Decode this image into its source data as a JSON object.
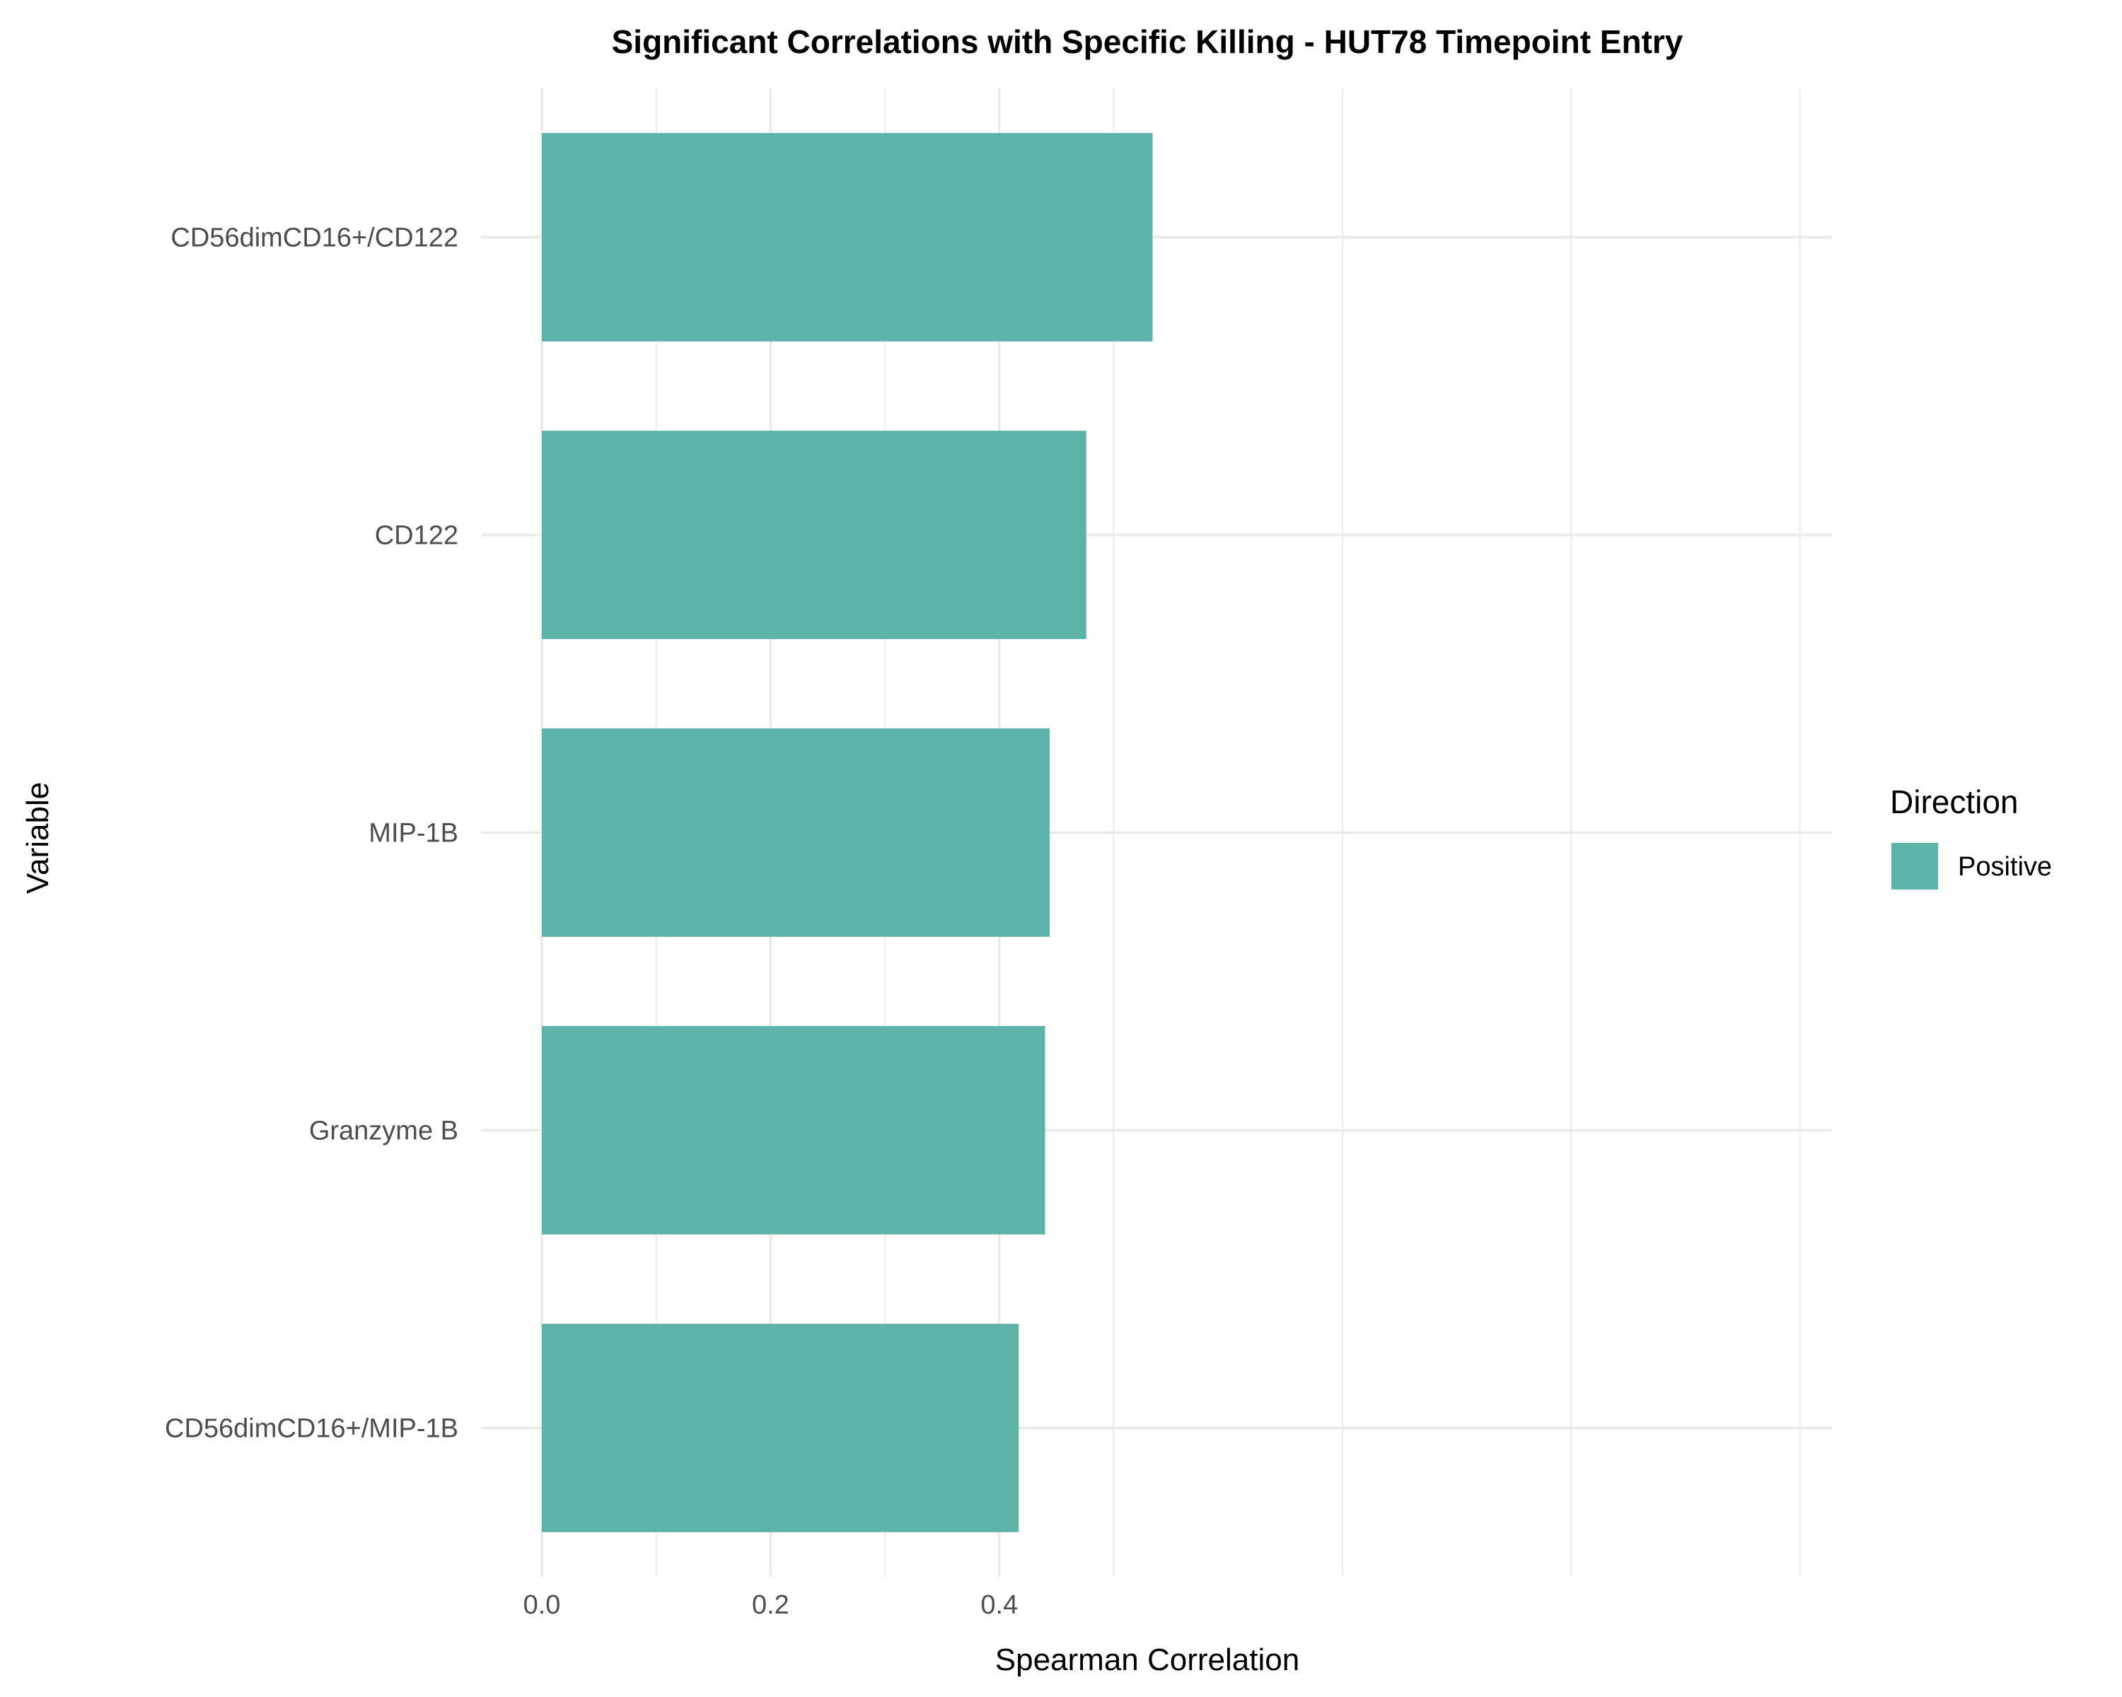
{
  "chart_data": {
    "type": "bar",
    "orientation": "horizontal",
    "title": "Significant Correlations with Specific Killing - HUT78 Timepoint Entry",
    "xlabel": "Spearman Correlation",
    "ylabel": "Variable",
    "xlim": [
      0,
      0.56
    ],
    "x_ticks": [
      0.0,
      0.2,
      0.4
    ],
    "x_tick_labels": [
      "0.0",
      "0.2",
      "0.4"
    ],
    "categories": [
      "CD56dimCD16+/CD122",
      "CD122",
      "MIP-1B",
      "Granzyme B",
      "CD56dimCD16+/MIP-1B"
    ],
    "series": [
      {
        "name": "Positive",
        "color": "#5cb3aa",
        "values": [
          0.534,
          0.476,
          0.444,
          0.44,
          0.417
        ]
      }
    ],
    "legend": {
      "title": "Direction",
      "placement": "right",
      "entries": [
        "Positive"
      ]
    },
    "grid": true,
    "grid_color": "#ebebeb"
  }
}
